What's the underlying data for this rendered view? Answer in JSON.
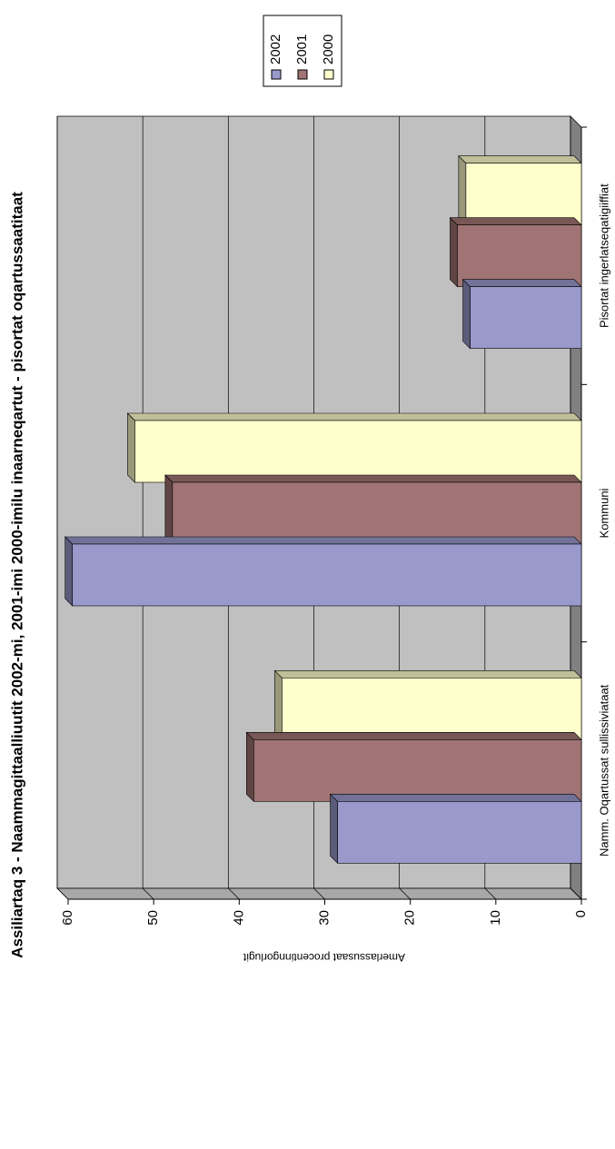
{
  "chart_data": {
    "type": "bar",
    "title": "Assiliartaq 3 - Naammagittaalliuutit 2002-mi, 2001-imi 2000-imilu inaarneqartut - pisortat oqartussaatitaat",
    "ylabel": "Amerlassusaat procentinngorlugit",
    "categories": [
      "Namm. Oqartussat sullissiviataat",
      "Kommuni",
      "Pisortat ingerlatseqatigiiffiat"
    ],
    "series": [
      {
        "name": "2002",
        "color": "#9999cc",
        "values": [
          28.5,
          59.5,
          13
        ]
      },
      {
        "name": "2001",
        "color": "#a07474",
        "values": [
          38.3,
          47.8,
          14.5
        ]
      },
      {
        "name": "2000",
        "color": "#ffffcc",
        "values": [
          35,
          52.2,
          13.5
        ]
      }
    ],
    "ylim": [
      0,
      60
    ],
    "yticks": [
      0,
      10,
      20,
      30,
      40,
      50,
      60
    ],
    "grid": true,
    "legend": "top-right"
  }
}
